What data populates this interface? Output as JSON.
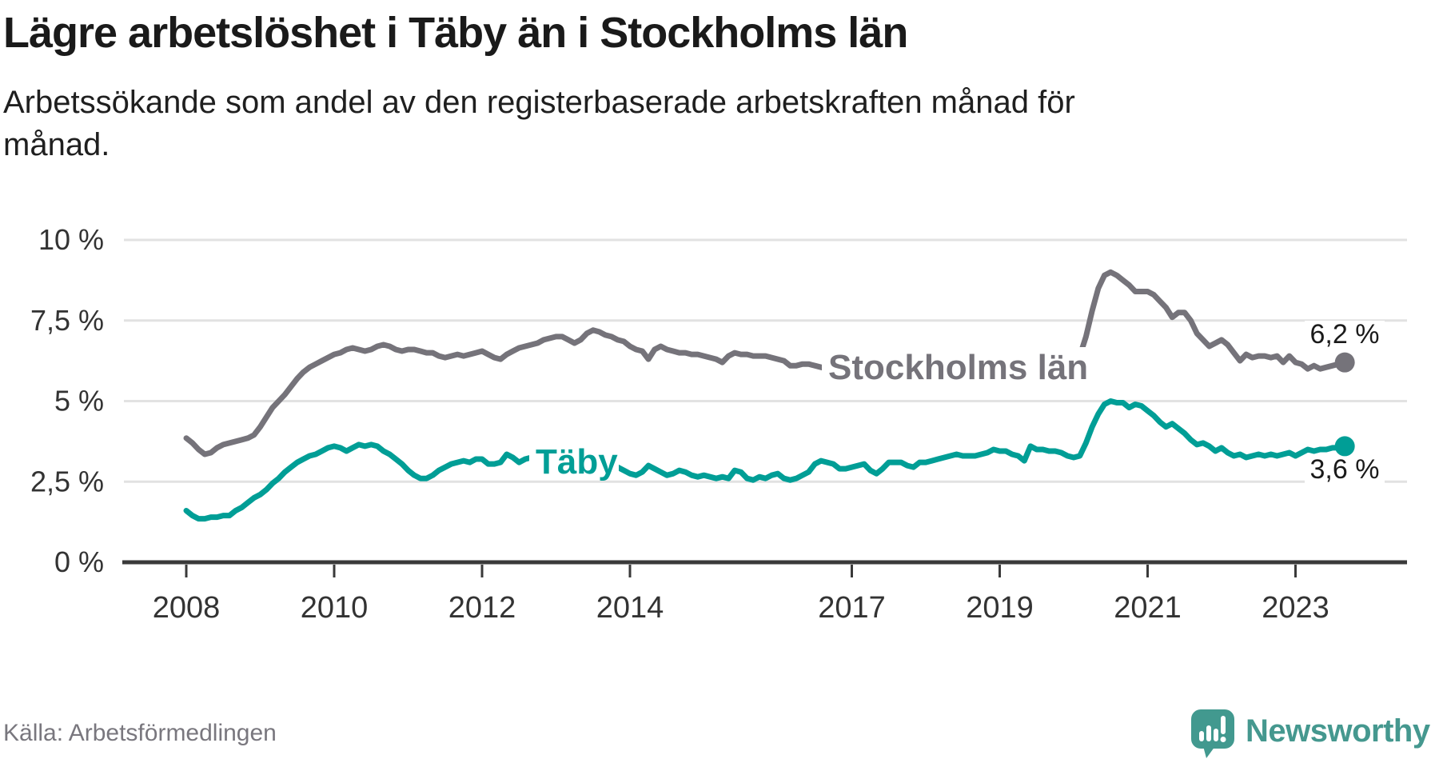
{
  "header": {
    "title": "Lägre arbetslöshet i Täby än i Stockholms län",
    "subtitle": "Arbetssökande som andel av den registerbaserade arbetskraften månad för månad."
  },
  "footer": {
    "source": "Källa: Arbetsförmedlingen",
    "brand": "Newsworthy"
  },
  "colors": {
    "stockholm_line": "#75737a",
    "taby_line": "#009e96",
    "gridline": "#e2e2e2",
    "axis": "#3a3a3a",
    "tick_label": "#333333",
    "end_label_text": "#1a1a1a",
    "brand_teal": "#45988f",
    "source_text": "#79777e"
  },
  "chart_data": {
    "type": "line",
    "title": "Lägre arbetslöshet i Täby än i Stockholms län",
    "subtitle": "Arbetssökande som andel av den registerbaserade arbetskraften månad för månad.",
    "x_interval": "monthly",
    "x_start": "2008-01",
    "x_end": "2023-09",
    "x_tick_years": [
      2008,
      2010,
      2012,
      2014,
      2017,
      2019,
      2021,
      2023
    ],
    "x_tick_labels": [
      "2008",
      "2010",
      "2012",
      "2014",
      "2017",
      "2019",
      "2021",
      "2023"
    ],
    "y_tick_values": [
      0,
      2.5,
      5,
      7.5,
      10
    ],
    "y_tick_labels": [
      "0 %",
      "2,5 %",
      "5 %",
      "7,5 %",
      "10 %"
    ],
    "ylim": [
      0,
      10
    ],
    "grid": true,
    "legend": "inline-labels",
    "series": [
      {
        "name": "Stockholms län",
        "color": "#75737a",
        "end_label": "6,2 %",
        "end_value": 6.2,
        "values": [
          3.85,
          3.7,
          3.5,
          3.35,
          3.4,
          3.55,
          3.65,
          3.7,
          3.75,
          3.8,
          3.85,
          3.95,
          4.2,
          4.5,
          4.8,
          5.0,
          5.2,
          5.45,
          5.7,
          5.9,
          6.05,
          6.15,
          6.25,
          6.35,
          6.45,
          6.5,
          6.6,
          6.65,
          6.6,
          6.55,
          6.6,
          6.7,
          6.75,
          6.7,
          6.6,
          6.55,
          6.6,
          6.6,
          6.55,
          6.5,
          6.5,
          6.4,
          6.35,
          6.4,
          6.45,
          6.4,
          6.45,
          6.5,
          6.55,
          6.45,
          6.35,
          6.3,
          6.45,
          6.55,
          6.65,
          6.7,
          6.75,
          6.8,
          6.9,
          6.95,
          7.0,
          7.0,
          6.9,
          6.8,
          6.9,
          7.1,
          7.2,
          7.15,
          7.05,
          7.0,
          6.9,
          6.85,
          6.7,
          6.6,
          6.55,
          6.3,
          6.6,
          6.7,
          6.6,
          6.55,
          6.5,
          6.5,
          6.45,
          6.45,
          6.4,
          6.35,
          6.3,
          6.2,
          6.4,
          6.5,
          6.45,
          6.45,
          6.4,
          6.4,
          6.4,
          6.35,
          6.3,
          6.25,
          6.1,
          6.1,
          6.15,
          6.15,
          6.1,
          6.05,
          6.0,
          5.95,
          5.95,
          5.9,
          5.9,
          5.85,
          5.85,
          5.8,
          5.8,
          5.8,
          5.85,
          5.85,
          5.9,
          5.9,
          5.9,
          5.9,
          5.9,
          5.85,
          5.8,
          5.8,
          5.75,
          5.8,
          5.85,
          5.9,
          5.9,
          5.95,
          5.95,
          6.0,
          6.0,
          6.0,
          6.0,
          6.0,
          6.05,
          6.1,
          6.1,
          6.15,
          6.15,
          6.2,
          6.2,
          6.25,
          6.3,
          6.4,
          7.0,
          7.8,
          8.5,
          8.9,
          9.0,
          8.9,
          8.75,
          8.6,
          8.4,
          8.4,
          8.4,
          8.3,
          8.1,
          7.9,
          7.6,
          7.75,
          7.75,
          7.5,
          7.1,
          6.9,
          6.7,
          6.8,
          6.9,
          6.75,
          6.5,
          6.25,
          6.45,
          6.35,
          6.4,
          6.4,
          6.35,
          6.4,
          6.2,
          6.4,
          6.2,
          6.15,
          6.0,
          6.1,
          6.0,
          6.05,
          6.1,
          6.15,
          6.2
        ]
      },
      {
        "name": "Täby",
        "color": "#009e96",
        "end_label": "3,6 %",
        "end_value": 3.6,
        "values": [
          1.6,
          1.45,
          1.35,
          1.35,
          1.4,
          1.4,
          1.45,
          1.45,
          1.6,
          1.7,
          1.85,
          2.0,
          2.1,
          2.25,
          2.45,
          2.6,
          2.8,
          2.95,
          3.1,
          3.2,
          3.3,
          3.35,
          3.45,
          3.55,
          3.6,
          3.55,
          3.45,
          3.55,
          3.65,
          3.6,
          3.65,
          3.6,
          3.45,
          3.35,
          3.2,
          3.05,
          2.85,
          2.7,
          2.6,
          2.6,
          2.7,
          2.85,
          2.95,
          3.05,
          3.1,
          3.15,
          3.1,
          3.2,
          3.2,
          3.05,
          3.05,
          3.1,
          3.35,
          3.25,
          3.1,
          3.2,
          3.25,
          3.2,
          3.15,
          3.1,
          3.1,
          3.15,
          3.1,
          3.05,
          3.1,
          3.05,
          3.0,
          3.05,
          3.05,
          3.05,
          2.95,
          2.85,
          2.75,
          2.7,
          2.8,
          3.0,
          2.9,
          2.8,
          2.7,
          2.75,
          2.85,
          2.8,
          2.7,
          2.65,
          2.7,
          2.65,
          2.6,
          2.65,
          2.6,
          2.85,
          2.8,
          2.6,
          2.55,
          2.65,
          2.6,
          2.7,
          2.75,
          2.6,
          2.55,
          2.6,
          2.7,
          2.8,
          3.05,
          3.15,
          3.1,
          3.05,
          2.9,
          2.9,
          2.95,
          3.0,
          3.05,
          2.85,
          2.75,
          2.9,
          3.1,
          3.1,
          3.1,
          3.0,
          2.95,
          3.1,
          3.1,
          3.15,
          3.2,
          3.25,
          3.3,
          3.35,
          3.3,
          3.3,
          3.3,
          3.35,
          3.4,
          3.5,
          3.45,
          3.45,
          3.35,
          3.3,
          3.15,
          3.6,
          3.5,
          3.5,
          3.45,
          3.45,
          3.4,
          3.3,
          3.25,
          3.3,
          3.7,
          4.2,
          4.6,
          4.9,
          5.0,
          4.95,
          4.95,
          4.8,
          4.9,
          4.85,
          4.7,
          4.55,
          4.35,
          4.2,
          4.3,
          4.15,
          4.0,
          3.8,
          3.65,
          3.7,
          3.6,
          3.45,
          3.55,
          3.4,
          3.3,
          3.35,
          3.25,
          3.3,
          3.35,
          3.3,
          3.35,
          3.3,
          3.35,
          3.4,
          3.3,
          3.4,
          3.5,
          3.45,
          3.5,
          3.5,
          3.55,
          3.55,
          3.6
        ]
      }
    ]
  }
}
